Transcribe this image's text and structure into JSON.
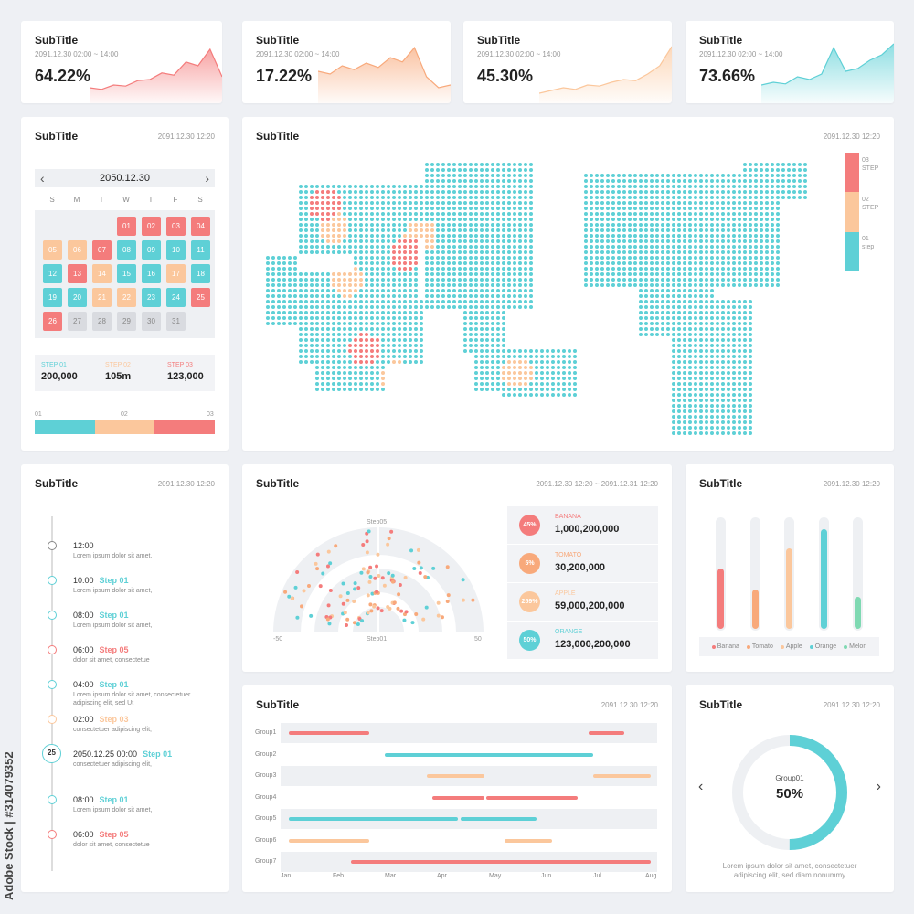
{
  "colors": {
    "red": "#f47c7c",
    "orange": "#fbc79c",
    "teal": "#5ed0d6",
    "peach": "#f8a97b",
    "green": "#7fd9b2",
    "gray": "#d9dbe0"
  },
  "kpis": [
    {
      "title": "SubTitle",
      "date": "2091.12.30 02:00 ~ 14:00",
      "value": "64.22%",
      "color": "#f47c7c",
      "trend": [
        0.15,
        0.12,
        0.2,
        0.18,
        0.28,
        0.3,
        0.42,
        0.38,
        0.62,
        0.55,
        0.85,
        0.35
      ]
    },
    {
      "title": "SubTitle",
      "date": "2091.12.30 02:00 ~ 14:00",
      "value": "17.22%",
      "color": "#f8a97b",
      "trend": [
        0.45,
        0.4,
        0.55,
        0.48,
        0.6,
        0.52,
        0.7,
        0.62,
        0.88,
        0.35,
        0.15,
        0.2
      ]
    },
    {
      "title": "SubTitle",
      "date": "2091.12.30 02:00 ~ 14:00",
      "value": "45.30%",
      "color": "#fbc79c",
      "trend": [
        0.05,
        0.1,
        0.15,
        0.12,
        0.2,
        0.18,
        0.25,
        0.3,
        0.28,
        0.4,
        0.55,
        0.9
      ]
    },
    {
      "title": "SubTitle",
      "date": "2091.12.30 02:00 ~ 14:00",
      "value": "73.66%",
      "color": "#5ed0d6",
      "trend": [
        0.2,
        0.25,
        0.22,
        0.35,
        0.3,
        0.4,
        0.88,
        0.45,
        0.5,
        0.65,
        0.75,
        0.95
      ]
    }
  ],
  "calendar": {
    "title": "SubTitle",
    "date": "2091.12.30 12:20",
    "month": "2050.12.30",
    "dow": [
      "S",
      "M",
      "T",
      "W",
      "T",
      "F",
      "S"
    ],
    "days": [
      {
        "d": "01",
        "c": "r"
      },
      {
        "d": "02",
        "c": "r"
      },
      {
        "d": "03",
        "c": "r"
      },
      {
        "d": "04",
        "c": "r"
      },
      {
        "d": "05",
        "c": "o"
      },
      {
        "d": "06",
        "c": "o"
      },
      {
        "d": "07",
        "c": "r"
      },
      {
        "d": "08",
        "c": "t"
      },
      {
        "d": "09",
        "c": "t"
      },
      {
        "d": "10",
        "c": "t"
      },
      {
        "d": "11",
        "c": "t"
      },
      {
        "d": "12",
        "c": "t"
      },
      {
        "d": "13",
        "c": "r"
      },
      {
        "d": "14",
        "c": "o"
      },
      {
        "d": "15",
        "c": "t"
      },
      {
        "d": "16",
        "c": "t"
      },
      {
        "d": "17",
        "c": "o"
      },
      {
        "d": "18",
        "c": "t"
      },
      {
        "d": "19",
        "c": "t"
      },
      {
        "d": "20",
        "c": "t"
      },
      {
        "d": "21",
        "c": "o"
      },
      {
        "d": "22",
        "c": "o"
      },
      {
        "d": "23",
        "c": "t"
      },
      {
        "d": "24",
        "c": "t"
      },
      {
        "d": "25",
        "c": "r"
      },
      {
        "d": "26",
        "c": "r"
      },
      {
        "d": "27",
        "c": "g"
      },
      {
        "d": "28",
        "c": "g"
      },
      {
        "d": "29",
        "c": "g"
      },
      {
        "d": "30",
        "c": "g"
      },
      {
        "d": "31",
        "c": "g"
      }
    ],
    "steps": [
      {
        "label": "STEP 01",
        "value": "200,000",
        "color": "#5ed0d6"
      },
      {
        "label": "STEP 02",
        "value": "105m",
        "color": "#fbc79c"
      },
      {
        "label": "STEP 03",
        "value": "123,000",
        "color": "#f47c7c"
      }
    ],
    "bar_labels": [
      "01",
      "02",
      "03"
    ]
  },
  "map": {
    "title": "SubTitle",
    "date": "2091.12.30 12:20",
    "legend": [
      {
        "num": "03",
        "label": "STEP",
        "color": "#f47c7c"
      },
      {
        "num": "02",
        "label": "STEP",
        "color": "#fbc79c"
      },
      {
        "num": "01",
        "label": "step",
        "color": "#5ed0d6"
      }
    ]
  },
  "timeline": {
    "title": "SubTitle",
    "date": "2091.12.30 12:20",
    "entries": [
      {
        "time": "12:00",
        "step": "",
        "desc": "Lorem ipsum dolor sit amet,",
        "color": "#888"
      },
      {
        "time": "10:00",
        "step": "Step 01",
        "desc": "Lorem ipsum dolor sit amet,",
        "color": "#5ed0d6"
      },
      {
        "time": "08:00",
        "step": "Step 01",
        "desc": "Lorem ipsum dolor sit amet,",
        "color": "#5ed0d6"
      },
      {
        "time": "06:00",
        "step": "Step 05",
        "desc": "dolor sit amet, consectetue",
        "color": "#f47c7c"
      },
      {
        "time": "04:00",
        "step": "Step 01",
        "desc": "Lorem ipsum dolor sit amet, consectetuer adipiscing elit, sed Ut",
        "color": "#5ed0d6"
      },
      {
        "time": "02:00",
        "step": "Step 03",
        "desc": "consectetuer adipiscing elit,",
        "color": "#fbc79c"
      },
      {
        "time": "2050.12.25 00:00",
        "step": "Step 01",
        "desc": "consectetuer adipiscing elit,",
        "color": "#5ed0d6"
      },
      {
        "time": "08:00",
        "step": "Step 01",
        "desc": "Lorem ipsum dolor sit amet,",
        "color": "#5ed0d6"
      },
      {
        "time": "06:00",
        "step": "Step 05",
        "desc": "dolor sit amet, consectetue",
        "color": "#f47c7c"
      }
    ],
    "badge": "25"
  },
  "radial": {
    "title": "SubTitle",
    "date": "2091.12.30 12:20 ~ 2091.12.31 12:20",
    "top_label": "Step05",
    "bottom_label": "Step01",
    "min_label": "-50",
    "max_label": "50",
    "items": [
      {
        "pct": "45%",
        "name": "BANANA",
        "value": "1,000,200,000",
        "color": "#f47c7c"
      },
      {
        "pct": "5%",
        "name": "TOMATO",
        "value": "30,200,000",
        "color": "#f8a97b"
      },
      {
        "pct": "259%",
        "name": "APPLE",
        "value": "59,000,200,000",
        "color": "#fbc79c"
      },
      {
        "pct": "50%",
        "name": "ORANGE",
        "value": "123,000,200,000",
        "color": "#5ed0d6"
      }
    ]
  },
  "chart_data": [
    {
      "type": "bar",
      "categories": [
        "Banana",
        "Tomato",
        "Apple",
        "Orange",
        "Melon"
      ],
      "values": [
        55,
        36,
        73,
        91,
        29
      ],
      "ylim": [
        0,
        100
      ],
      "colors": [
        "#f47c7c",
        "#f8a97b",
        "#fbc79c",
        "#5ed0d6",
        "#7fd9b2"
      ]
    },
    {
      "type": "bar",
      "orientation": "gantt",
      "categories": [
        "Group1",
        "Group2",
        "Group3",
        "Group4",
        "Group5",
        "Group6",
        "Group7"
      ],
      "x_ticks": [
        "Jan",
        "Feb",
        "Mar",
        "Apr",
        "May",
        "Jun",
        "Jul",
        "Aug"
      ],
      "segments": [
        {
          "group": 0,
          "start": 0.05,
          "end": 1.6,
          "color": "#f47c7c"
        },
        {
          "group": 0,
          "start": 5.8,
          "end": 6.5,
          "color": "#f47c7c"
        },
        {
          "group": 1,
          "start": 1.9,
          "end": 5.9,
          "color": "#5ed0d6"
        },
        {
          "group": 2,
          "start": 2.7,
          "end": 3.8,
          "color": "#fbc79c"
        },
        {
          "group": 2,
          "start": 5.9,
          "end": 7.0,
          "color": "#fbc79c"
        },
        {
          "group": 3,
          "start": 2.8,
          "end": 3.8,
          "color": "#f47c7c"
        },
        {
          "group": 3,
          "start": 3.85,
          "end": 5.6,
          "color": "#f47c7c"
        },
        {
          "group": 4,
          "start": 0.05,
          "end": 3.3,
          "color": "#5ed0d6"
        },
        {
          "group": 4,
          "start": 3.35,
          "end": 4.8,
          "color": "#5ed0d6"
        },
        {
          "group": 5,
          "start": 0.05,
          "end": 1.6,
          "color": "#fbc79c"
        },
        {
          "group": 5,
          "start": 4.2,
          "end": 5.1,
          "color": "#fbc79c"
        },
        {
          "group": 6,
          "start": 1.25,
          "end": 7.0,
          "color": "#f47c7c"
        }
      ]
    },
    {
      "type": "pie",
      "label": "Group01",
      "values": [
        50
      ],
      "color": "#5ed0d6"
    }
  ],
  "bars_card": {
    "title": "SubTitle",
    "date": "2091.12.30 12:20"
  },
  "gantt_card": {
    "title": "SubTitle",
    "date": "2091.12.30 12:20"
  },
  "donut_card": {
    "title": "SubTitle",
    "date": "2091.12.30 12:20",
    "center_label": "Group01",
    "center_value": "50%",
    "caption": "Lorem ipsum dolor sit amet, consectetuer adipiscing elit, sed diam nonummy"
  },
  "watermark": "Adobe Stock | #314079352"
}
